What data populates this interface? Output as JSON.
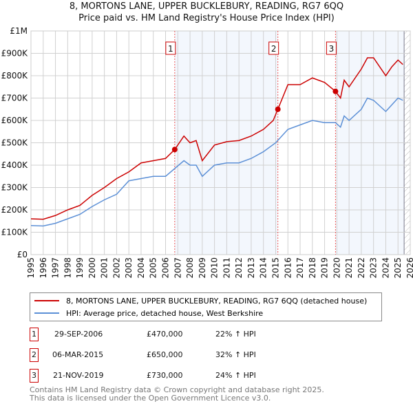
{
  "title_line1": "8, MORTONS LANE, UPPER BUCKLEBURY, READING, RG7 6QQ",
  "title_line2": "Price paid vs. HM Land Registry's House Price Index (HPI)",
  "legend": [
    {
      "label": "8, MORTONS LANE, UPPER BUCKLEBURY, READING, RG7 6QQ (detached house)",
      "color": "#cc0000"
    },
    {
      "label": "HPI: Average price, detached house, West Berkshire",
      "color": "#5b8fd6"
    }
  ],
  "sales": [
    {
      "num": "1",
      "date": "29-SEP-2006",
      "price": "£470,000",
      "hpi": "22% ↑ HPI",
      "x": 2006.75,
      "y": 470000
    },
    {
      "num": "2",
      "date": "06-MAR-2015",
      "price": "£650,000",
      "hpi": "32% ↑ HPI",
      "x": 2015.18,
      "y": 650000
    },
    {
      "num": "3",
      "date": "21-NOV-2019",
      "price": "£730,000",
      "hpi": "24% ↑ HPI",
      "x": 2019.89,
      "y": 730000
    }
  ],
  "footer_line1": "Contains HM Land Registry data © Crown copyright and database right 2025.",
  "footer_line2": "This data is licensed under the Open Government Licence v3.0.",
  "chart_data": {
    "type": "line",
    "xlim": [
      1995,
      2026
    ],
    "ylim": [
      0,
      1000000
    ],
    "yticks": [
      {
        "v": 0,
        "label": "£0"
      },
      {
        "v": 100000,
        "label": "£100K"
      },
      {
        "v": 200000,
        "label": "£200K"
      },
      {
        "v": 300000,
        "label": "£300K"
      },
      {
        "v": 400000,
        "label": "£400K"
      },
      {
        "v": 500000,
        "label": "£500K"
      },
      {
        "v": 600000,
        "label": "£600K"
      },
      {
        "v": 700000,
        "label": "£700K"
      },
      {
        "v": 800000,
        "label": "£800K"
      },
      {
        "v": 900000,
        "label": "£900K"
      },
      {
        "v": 1000000,
        "label": "£1M"
      }
    ],
    "xticks": [
      "1995",
      "1996",
      "1997",
      "1998",
      "1999",
      "2000",
      "2001",
      "2002",
      "2003",
      "2004",
      "2005",
      "2006",
      "2007",
      "2008",
      "2009",
      "2010",
      "2011",
      "2012",
      "2013",
      "2014",
      "2015",
      "2016",
      "2017",
      "2018",
      "2019",
      "2020",
      "2021",
      "2022",
      "2023",
      "2024",
      "2025",
      "2026"
    ],
    "series": [
      {
        "name": "8, MORTONS LANE, UPPER BUCKLEBURY, READING, RG7 6QQ (detached house)",
        "color": "#cc0000",
        "x": [
          1995,
          1996,
          1997,
          1998,
          1999,
          2000,
          2001,
          2002,
          2003,
          2004,
          2005,
          2006,
          2006.75,
          2007.5,
          2008,
          2008.5,
          2009,
          2010,
          2011,
          2012,
          2013,
          2014,
          2014.8,
          2015.18,
          2016,
          2017,
          2018,
          2019,
          2019.89,
          2020.3,
          2020.6,
          2021,
          2022,
          2022.5,
          2023,
          2024,
          2024.5,
          2025,
          2025.4
        ],
        "y": [
          160000,
          158000,
          175000,
          200000,
          220000,
          265000,
          300000,
          340000,
          370000,
          410000,
          420000,
          430000,
          470000,
          530000,
          500000,
          510000,
          420000,
          490000,
          505000,
          510000,
          530000,
          560000,
          600000,
          650000,
          760000,
          760000,
          790000,
          770000,
          730000,
          700000,
          780000,
          750000,
          830000,
          880000,
          880000,
          800000,
          840000,
          870000,
          850000
        ]
      },
      {
        "name": "HPI: Average price, detached house, West Berkshire",
        "color": "#5b8fd6",
        "x": [
          1995,
          1996,
          1997,
          1998,
          1999,
          2000,
          2001,
          2002,
          2003,
          2004,
          2005,
          2006,
          2006.75,
          2007.5,
          2008,
          2008.5,
          2009,
          2010,
          2011,
          2012,
          2013,
          2014,
          2015,
          2016,
          2017,
          2018,
          2019,
          2019.89,
          2020.3,
          2020.6,
          2021,
          2022,
          2022.5,
          2023,
          2024,
          2024.5,
          2025,
          2025.4
        ],
        "y": [
          130000,
          128000,
          140000,
          160000,
          180000,
          215000,
          245000,
          270000,
          330000,
          340000,
          350000,
          350000,
          385000,
          420000,
          400000,
          400000,
          350000,
          400000,
          410000,
          410000,
          430000,
          460000,
          500000,
          560000,
          580000,
          600000,
          590000,
          590000,
          570000,
          620000,
          600000,
          650000,
          700000,
          690000,
          640000,
          670000,
          700000,
          690000
        ]
      }
    ]
  }
}
